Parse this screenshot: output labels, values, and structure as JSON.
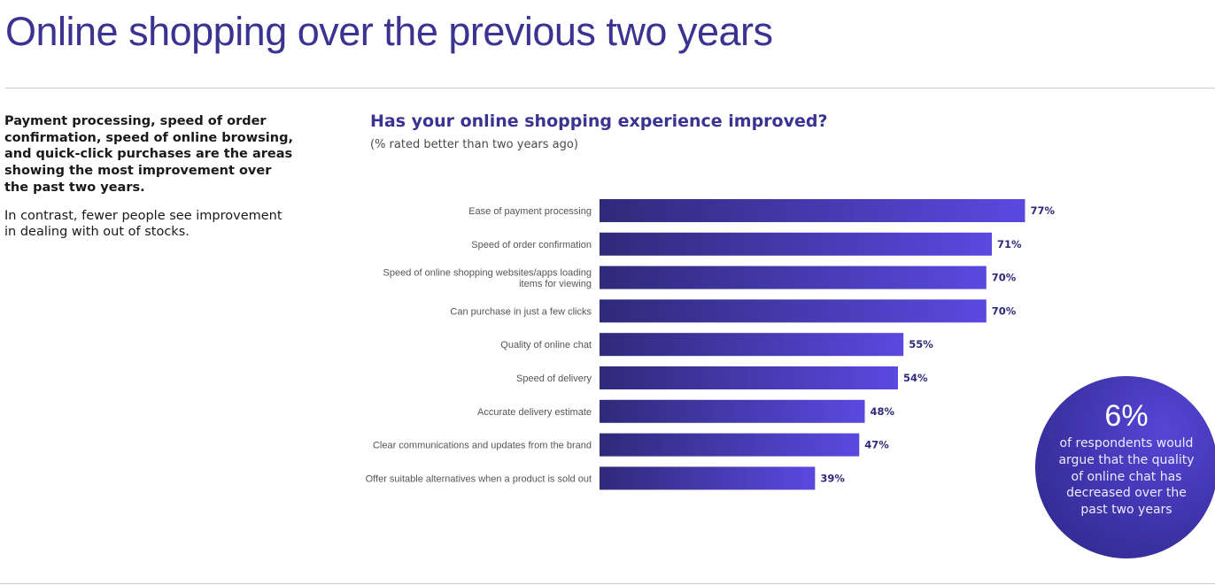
{
  "page": {
    "title": "Online shopping over the previous two years"
  },
  "intro": {
    "bold_text": "Payment processing, speed of order confirmation, speed of online browsing, and quick-click purchases are the areas showing the most improvement over the past two years.",
    "plain_text": "In contrast, fewer people see improvement in dealing with out of stocks."
  },
  "callout": {
    "value": "6%",
    "text": "of respondents would argue that the quality of online chat has decreased over the past two years"
  },
  "colors": {
    "title": "#3a3391",
    "bar_start": "#2f2a7a",
    "bar_end": "#5a49e0",
    "value_label": "#2f2a7a"
  },
  "chart_data": {
    "type": "bar",
    "orientation": "horizontal",
    "title": "Has your online shopping experience improved?",
    "subtitle": "(% rated better than two years ago)",
    "unit": "%",
    "xlim": [
      0,
      100
    ],
    "grid": false,
    "categories": [
      [
        "Ease of payment processing"
      ],
      [
        "Speed of order confirmation"
      ],
      [
        "Speed of online shopping websites/apps loading",
        "items for viewing"
      ],
      [
        "Can purchase in just a few clicks"
      ],
      [
        "Quality of online chat"
      ],
      [
        "Speed of delivery"
      ],
      [
        "Accurate delivery estimate"
      ],
      [
        "Clear communications and updates from the brand"
      ],
      [
        "Offer suitable alternatives when a product is sold out"
      ]
    ],
    "values": [
      77,
      71,
      70,
      70,
      55,
      54,
      48,
      47,
      39
    ],
    "value_labels": [
      "77%",
      "71%",
      "70%",
      "70%",
      "55%",
      "54%",
      "48%",
      "47%",
      "39%"
    ]
  }
}
